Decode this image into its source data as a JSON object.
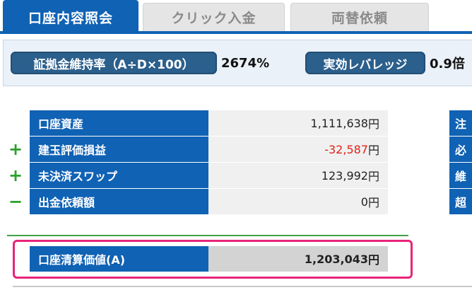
{
  "tabs": [
    {
      "label": "口座内容照会",
      "active": true
    },
    {
      "label": "クリック入金",
      "active": false
    },
    {
      "label": "両替依頼",
      "active": false
    }
  ],
  "info": {
    "margin_rate_label": "証拠金維持率（A÷D×100）",
    "margin_rate_value": "2674%",
    "leverage_label": "実効レバレッジ",
    "leverage_value": "0.9倍"
  },
  "account": {
    "rows": [
      {
        "sign": "",
        "label": "口座資産",
        "value": "1,111,638",
        "unit": "円"
      },
      {
        "sign": "+",
        "label": "建玉評価損益",
        "value": "-32,587",
        "unit": "円"
      },
      {
        "sign": "+",
        "label": "未決済スワップ",
        "value": "123,992",
        "unit": "円"
      },
      {
        "sign": "−",
        "label": "出金依頼額",
        "value": "0",
        "unit": "円"
      }
    ],
    "total": {
      "label": "口座清算価値(A)",
      "value": "1,203,043",
      "unit": "円"
    }
  },
  "right_panel": {
    "labels": [
      "注",
      "必",
      "維",
      "超"
    ]
  },
  "colors": {
    "primary": "#1062b4",
    "negative": "#e0231b",
    "plus_sign": "#2ca02c",
    "highlight": "#e8247a"
  }
}
